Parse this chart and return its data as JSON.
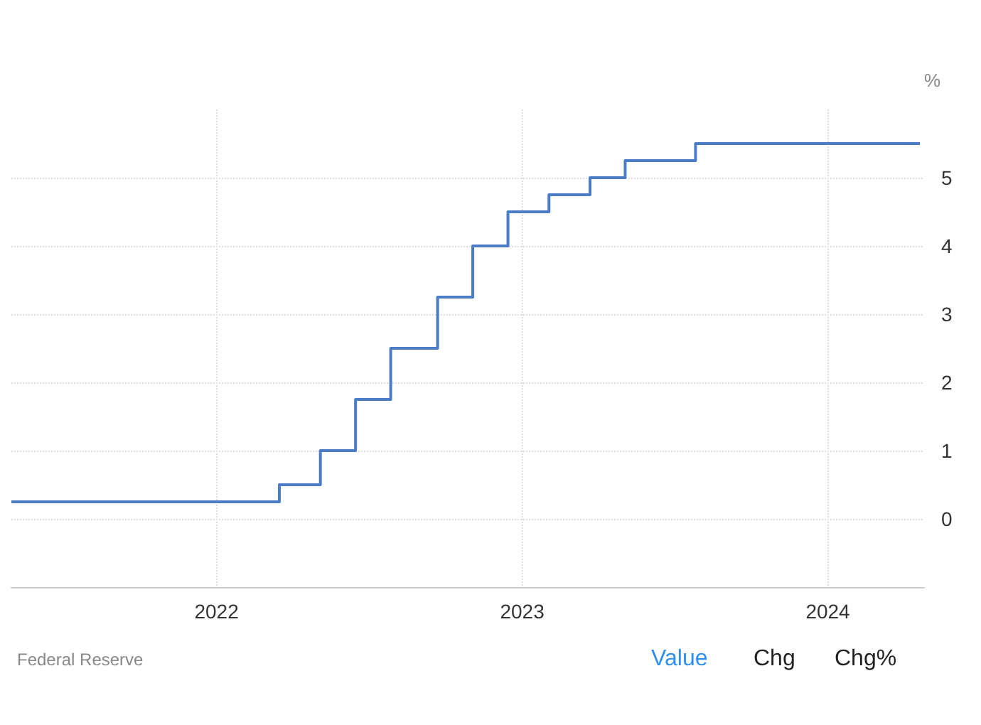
{
  "chart_data": {
    "type": "step",
    "ylabel": "%",
    "x": [
      "2021-05-01",
      "2022-03-17",
      "2022-05-05",
      "2022-06-16",
      "2022-07-28",
      "2022-09-22",
      "2022-11-03",
      "2022-12-15",
      "2023-02-02",
      "2023-03-23",
      "2023-05-04",
      "2023-07-27",
      "2024-04-20"
    ],
    "series": [
      {
        "color": "#4a7cc7",
        "values": [
          0.25,
          0.5,
          1.0,
          1.75,
          2.5,
          3.25,
          4.0,
          4.5,
          4.75,
          5.0,
          5.25,
          5.5,
          5.5
        ]
      }
    ],
    "xlim": [
      "2021-05-01",
      "2024-04-25"
    ],
    "xticks": [
      {
        "value": "2022-01-01",
        "label": "2022"
      },
      {
        "value": "2023-01-01",
        "label": "2023"
      },
      {
        "value": "2024-01-01",
        "label": "2024"
      }
    ],
    "ylim": [
      -1,
      6
    ],
    "yticks": [
      0,
      1,
      2,
      3,
      4,
      5
    ],
    "grid": true,
    "marker": "none",
    "line_style": "solid",
    "annotations": [
      "Federal Reserve",
      "Value",
      "Chg",
      "Chg%"
    ]
  }
}
